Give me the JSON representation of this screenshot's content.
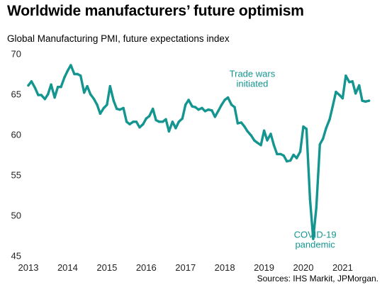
{
  "title": "Worldwide manufacturers’ future optimism",
  "subtitle": "Global Manufacturing  PMI, future expectations  index",
  "source": "Sources: IHS Markit, JPMorgan.",
  "chart_data": {
    "type": "line",
    "title": "Worldwide manufacturers’ future optimism",
    "ylabel": "Global Manufacturing  PMI, future expectations  index",
    "xlabel": "",
    "ylim": [
      45,
      70
    ],
    "xlim": [
      2013.0,
      2021.75
    ],
    "y_ticks": [
      70,
      65,
      60,
      55,
      50,
      45
    ],
    "x_ticks": [
      "2013",
      "2014",
      "2015",
      "2016",
      "2017",
      "2018",
      "2019",
      "2020",
      "2021"
    ],
    "grid": false,
    "color": "#14958f",
    "annotations": [
      {
        "lines": [
          "Trade wars",
          "initiated"
        ],
        "x": 2018.7,
        "y": 66.3
      },
      {
        "lines": [
          "COVID-19",
          "pandemic"
        ],
        "x": 2020.3,
        "y": 46.4
      }
    ],
    "series": [
      {
        "values": [
          [
            2013.0,
            66.1
          ],
          [
            2013.08,
            66.6
          ],
          [
            2013.17,
            65.8
          ],
          [
            2013.25,
            64.9
          ],
          [
            2013.33,
            64.9
          ],
          [
            2013.42,
            64.4
          ],
          [
            2013.5,
            65.0
          ],
          [
            2013.58,
            66.2
          ],
          [
            2013.67,
            64.6
          ],
          [
            2013.75,
            65.9
          ],
          [
            2013.83,
            65.9
          ],
          [
            2013.92,
            67.1
          ],
          [
            2014.0,
            67.9
          ],
          [
            2014.08,
            68.6
          ],
          [
            2014.17,
            67.5
          ],
          [
            2014.25,
            67.5
          ],
          [
            2014.33,
            67.3
          ],
          [
            2014.42,
            65.2
          ],
          [
            2014.5,
            66.0
          ],
          [
            2014.58,
            65.0
          ],
          [
            2014.67,
            64.4
          ],
          [
            2014.75,
            63.7
          ],
          [
            2014.83,
            62.6
          ],
          [
            2014.92,
            63.3
          ],
          [
            2015.0,
            63.7
          ],
          [
            2015.08,
            66.0
          ],
          [
            2015.17,
            64.2
          ],
          [
            2015.25,
            63.2
          ],
          [
            2015.33,
            63.1
          ],
          [
            2015.42,
            63.3
          ],
          [
            2015.5,
            61.6
          ],
          [
            2015.58,
            61.3
          ],
          [
            2015.67,
            61.6
          ],
          [
            2015.75,
            61.6
          ],
          [
            2015.83,
            60.9
          ],
          [
            2015.92,
            61.3
          ],
          [
            2016.0,
            62.0
          ],
          [
            2016.08,
            62.3
          ],
          [
            2016.17,
            63.2
          ],
          [
            2016.25,
            61.8
          ],
          [
            2016.33,
            61.6
          ],
          [
            2016.42,
            61.6
          ],
          [
            2016.5,
            61.9
          ],
          [
            2016.58,
            60.4
          ],
          [
            2016.67,
            61.6
          ],
          [
            2016.75,
            60.8
          ],
          [
            2016.83,
            61.6
          ],
          [
            2016.92,
            62.0
          ],
          [
            2017.0,
            63.7
          ],
          [
            2017.08,
            64.3
          ],
          [
            2017.17,
            63.5
          ],
          [
            2017.25,
            63.4
          ],
          [
            2017.33,
            63.1
          ],
          [
            2017.42,
            63.3
          ],
          [
            2017.5,
            62.9
          ],
          [
            2017.58,
            63.1
          ],
          [
            2017.67,
            63.0
          ],
          [
            2017.75,
            62.2
          ],
          [
            2017.83,
            62.9
          ],
          [
            2017.92,
            63.7
          ],
          [
            2018.0,
            64.3
          ],
          [
            2018.08,
            64.6
          ],
          [
            2018.17,
            63.7
          ],
          [
            2018.25,
            63.4
          ],
          [
            2018.33,
            61.4
          ],
          [
            2018.42,
            61.5
          ],
          [
            2018.5,
            61.0
          ],
          [
            2018.58,
            60.4
          ],
          [
            2018.67,
            59.9
          ],
          [
            2018.75,
            59.3
          ],
          [
            2018.83,
            59.0
          ],
          [
            2018.92,
            58.7
          ],
          [
            2019.0,
            60.5
          ],
          [
            2019.08,
            59.3
          ],
          [
            2019.17,
            60.1
          ],
          [
            2019.25,
            58.7
          ],
          [
            2019.33,
            57.6
          ],
          [
            2019.42,
            57.6
          ],
          [
            2019.5,
            57.4
          ],
          [
            2019.58,
            56.7
          ],
          [
            2019.67,
            56.8
          ],
          [
            2019.75,
            57.5
          ],
          [
            2019.83,
            57.1
          ],
          [
            2019.92,
            57.9
          ],
          [
            2020.0,
            61.0
          ],
          [
            2020.08,
            60.7
          ],
          [
            2020.17,
            52.0
          ],
          [
            2020.25,
            47.1
          ],
          [
            2020.33,
            51.0
          ],
          [
            2020.42,
            58.8
          ],
          [
            2020.5,
            59.5
          ],
          [
            2020.58,
            60.8
          ],
          [
            2020.67,
            61.9
          ],
          [
            2020.75,
            63.6
          ],
          [
            2020.83,
            65.3
          ],
          [
            2020.92,
            64.9
          ],
          [
            2021.0,
            64.5
          ],
          [
            2021.08,
            67.3
          ],
          [
            2021.17,
            66.5
          ],
          [
            2021.25,
            66.6
          ],
          [
            2021.33,
            65.1
          ],
          [
            2021.42,
            66.1
          ],
          [
            2021.5,
            64.2
          ],
          [
            2021.58,
            64.1
          ],
          [
            2021.67,
            64.2
          ]
        ]
      }
    ]
  }
}
